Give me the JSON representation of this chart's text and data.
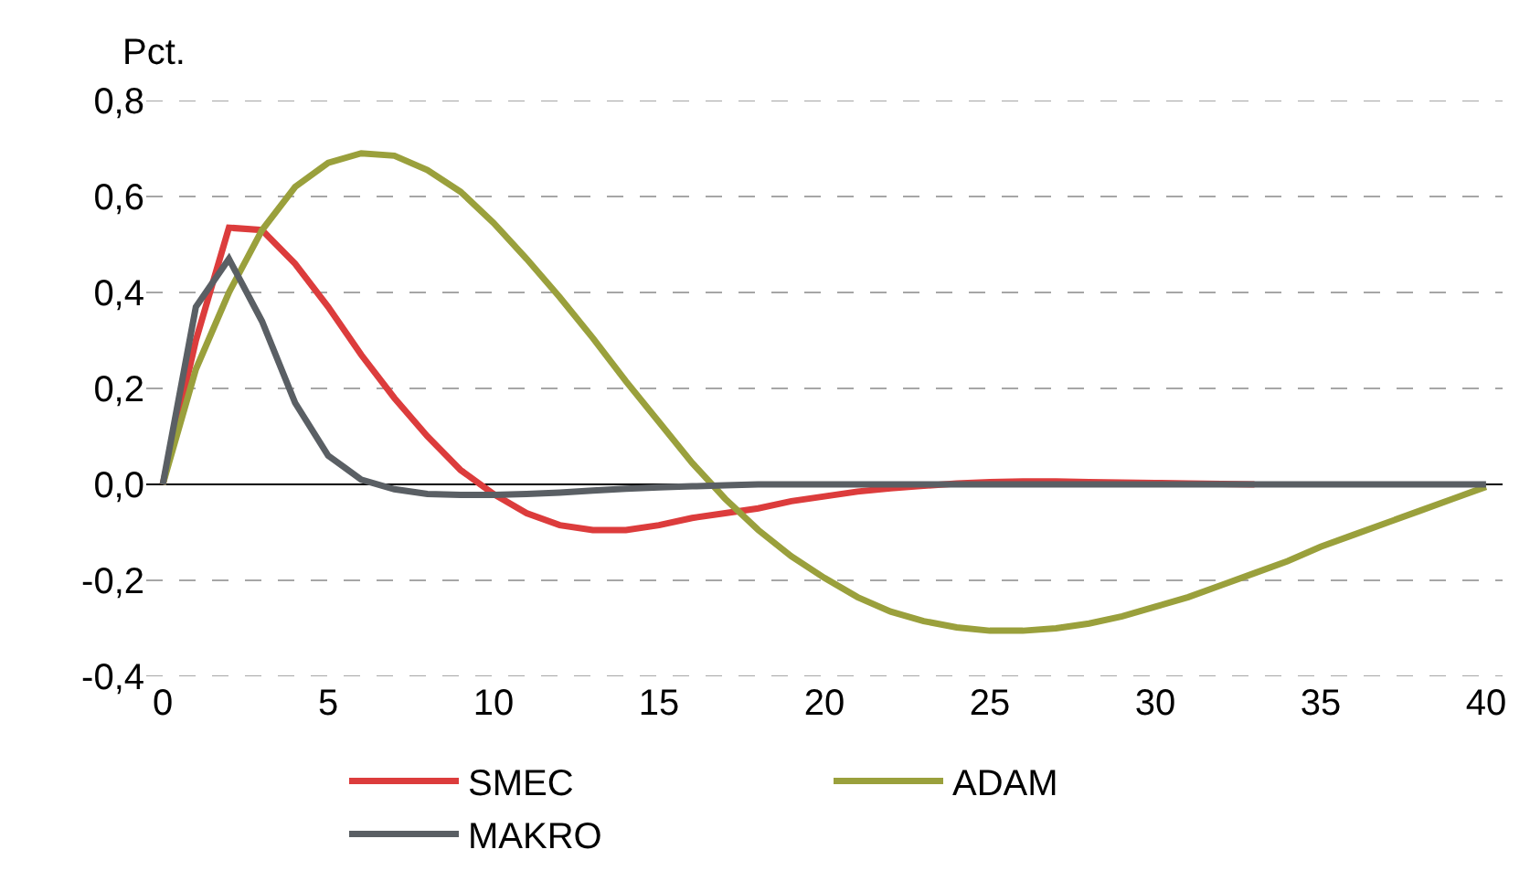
{
  "chart_data": {
    "type": "line",
    "ylabel": "Pct.",
    "x": [
      0,
      1,
      2,
      3,
      4,
      5,
      6,
      7,
      8,
      9,
      10,
      11,
      12,
      13,
      14,
      15,
      16,
      17,
      18,
      19,
      20,
      21,
      22,
      23,
      24,
      25,
      26,
      27,
      28,
      29,
      30,
      31,
      32,
      33,
      34,
      35,
      36,
      37,
      38,
      39,
      40
    ],
    "series": [
      {
        "name": "SMEC",
        "color": "#dc3c3c",
        "values": [
          0,
          0.3,
          0.535,
          0.53,
          0.46,
          0.37,
          0.27,
          0.18,
          0.1,
          0.03,
          -0.02,
          -0.06,
          -0.085,
          -0.095,
          -0.095,
          -0.085,
          -0.07,
          -0.06,
          -0.05,
          -0.035,
          -0.025,
          -0.015,
          -0.008,
          -0.003,
          0.002,
          0.005,
          0.006,
          0.006,
          0.005,
          0.004,
          0.003,
          0.002,
          0.001,
          0,
          null,
          null,
          null,
          null,
          null,
          null,
          null
        ]
      },
      {
        "name": "ADAM",
        "color": "#9aa03c",
        "values": [
          0,
          0.24,
          0.4,
          0.53,
          0.62,
          0.67,
          0.69,
          0.685,
          0.655,
          0.61,
          0.545,
          0.47,
          0.39,
          0.305,
          0.215,
          0.13,
          0.045,
          -0.03,
          -0.095,
          -0.15,
          -0.195,
          -0.235,
          -0.265,
          -0.285,
          -0.298,
          -0.305,
          -0.305,
          -0.3,
          -0.29,
          -0.275,
          -0.255,
          -0.235,
          -0.21,
          -0.185,
          -0.16,
          -0.13,
          -0.105,
          -0.08,
          -0.055,
          -0.03,
          -0.005
        ]
      },
      {
        "name": "MAKRO",
        "color": "#5a5f64",
        "values": [
          0,
          0.37,
          0.47,
          0.34,
          0.17,
          0.06,
          0.01,
          -0.01,
          -0.02,
          -0.022,
          -0.022,
          -0.02,
          -0.017,
          -0.013,
          -0.009,
          -0.006,
          -0.004,
          -0.002,
          0,
          0,
          0,
          0,
          0,
          0,
          0,
          0,
          0,
          0,
          0,
          0,
          0,
          0,
          0,
          0,
          0,
          0,
          0,
          0,
          0,
          0,
          0
        ]
      }
    ],
    "xlim": [
      -0.5,
      40.5
    ],
    "xticks": [
      0,
      5,
      10,
      15,
      20,
      25,
      30,
      35,
      40
    ],
    "ylim": [
      -0.4,
      0.8
    ],
    "yticks": [
      {
        "value": -0.4,
        "label": "-0,4"
      },
      {
        "value": -0.2,
        "label": "-0,2"
      },
      {
        "value": 0,
        "label": "0,0"
      },
      {
        "value": 0.2,
        "label": "0,2"
      },
      {
        "value": 0.4,
        "label": "0,4"
      },
      {
        "value": 0.6,
        "label": "0,6"
      },
      {
        "value": 0.8,
        "label": "0,8"
      }
    ],
    "grid": "y",
    "legend": "bottom",
    "marker": "none",
    "line_style": "solid"
  }
}
